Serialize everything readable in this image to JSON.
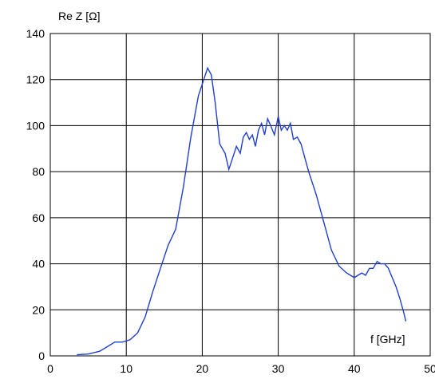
{
  "chart_data": {
    "type": "line",
    "ylabel": "Re Z [Ω]",
    "xlabel": "f [GHz]",
    "xlim": [
      0,
      50
    ],
    "ylim": [
      0,
      140
    ],
    "xticks": [
      0,
      10,
      20,
      30,
      40,
      50
    ],
    "yticks": [
      0,
      20,
      40,
      60,
      80,
      100,
      120,
      140
    ],
    "grid": true,
    "line_color": "#1f3fd1",
    "series": [
      {
        "x": [
          3.5,
          5,
          6.5,
          7.5,
          8.5,
          9.5,
          10.5,
          11.5,
          12.5,
          13.5,
          14.5,
          15.5,
          16.5,
          17.5,
          18.5,
          19.5,
          20.2,
          20.7,
          21.2,
          21.7,
          22.3,
          23.0,
          23.5,
          24.0,
          24.5,
          25.0,
          25.4,
          25.8,
          26.2,
          26.6,
          27.0,
          27.4,
          27.8,
          28.2,
          28.6,
          29.0,
          29.5,
          30.0,
          30.4,
          30.8,
          31.2,
          31.6,
          32.0,
          32.5,
          33.0,
          33.5,
          34.0,
          35.0,
          36.0,
          37.0,
          38.0,
          39.0,
          40.0,
          41.0,
          41.5,
          42.0,
          42.5,
          43.0,
          43.5,
          44.0,
          44.5,
          45.0,
          45.5,
          46.0,
          46.5,
          46.8
        ],
        "y": [
          0.5,
          0.8,
          2,
          4,
          6,
          6,
          7,
          10,
          17,
          28,
          38,
          48,
          55,
          73,
          95,
          113,
          120,
          125,
          122,
          110,
          92,
          88,
          81,
          86,
          91,
          88,
          95,
          97,
          94,
          96,
          91,
          98,
          101,
          96,
          103,
          100,
          96,
          104,
          98,
          100,
          98,
          101,
          94,
          95,
          92,
          86,
          80,
          70,
          58,
          46,
          39,
          36,
          34,
          36,
          35,
          38,
          38,
          41,
          40,
          40,
          38,
          34,
          30,
          25,
          19,
          15
        ]
      }
    ]
  }
}
